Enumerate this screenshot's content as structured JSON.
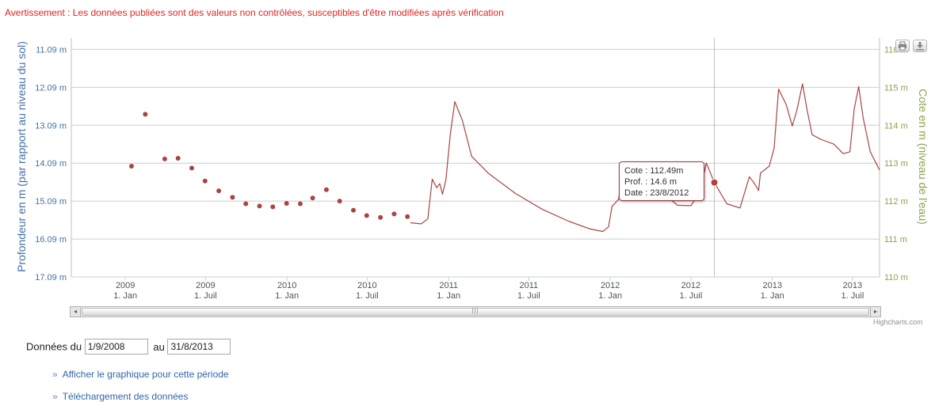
{
  "warning": "Avertissement : Les données publiées sont des valeurs non contrôlées, susceptibles d'être modifiées après vérification",
  "toolbar": {
    "print_icon": "printer-icon",
    "export_icon": "download-icon"
  },
  "tooltip": {
    "cote": "Cote : 112.49m",
    "prof": "Prof. : 14.6 m",
    "date": "Date : 23/8/2012"
  },
  "credits": "Highcharts.com",
  "form": {
    "label_from": "Données du",
    "from_value": "1/9/2008",
    "label_to": "au",
    "to_value": "31/8/2013"
  },
  "links": {
    "show_chart": "Afficher le graphique pour cette période",
    "download": "Téléchargement des données"
  },
  "colors": {
    "series": "#a94442",
    "left_axis": "#4572a7",
    "right_axis": "#89a54e",
    "warning": "#e4231f"
  },
  "chart_data": {
    "type": "line",
    "xlabel": "",
    "left_axis": {
      "label": "Profondeur en m (par rapport au niveau du sol)",
      "ticks": [
        "11.09 m",
        "12.09 m",
        "13.09 m",
        "14.09 m",
        "15.09 m",
        "16.09 m",
        "17.09 m"
      ],
      "range": [
        10.79,
        17.09
      ],
      "reversed": true
    },
    "right_axis": {
      "label": "Cote en m (niveau de l'eau)",
      "ticks": [
        "110 m",
        "111 m",
        "112 m",
        "113 m",
        "114 m",
        "115 m",
        "116 m"
      ],
      "range": [
        110,
        116.3
      ]
    },
    "x_ticks": [
      {
        "year": "2009",
        "sub": "1. Jan",
        "date": "2009-01-01"
      },
      {
        "year": "2009",
        "sub": "1. Juil",
        "date": "2009-07-01"
      },
      {
        "year": "2010",
        "sub": "1. Jan",
        "date": "2010-01-01"
      },
      {
        "year": "2010",
        "sub": "1. Juil",
        "date": "2010-07-01"
      },
      {
        "year": "2011",
        "sub": "1. Jan",
        "date": "2011-01-01"
      },
      {
        "year": "2011",
        "sub": "1. Juil",
        "date": "2011-07-01"
      },
      {
        "year": "2012",
        "sub": "1. Jan",
        "date": "2012-01-01"
      },
      {
        "year": "2012",
        "sub": "1. Juil",
        "date": "2012-07-01"
      },
      {
        "year": "2013",
        "sub": "1. Jan",
        "date": "2013-01-01"
      },
      {
        "year": "2013",
        "sub": "1. Juil",
        "date": "2013-07-01"
      }
    ],
    "x_range": [
      "2008-09-01",
      "2013-08-31"
    ],
    "grid": true,
    "highlight": {
      "date": "2012-08-23",
      "cote": 112.49
    },
    "series": [
      {
        "name": "",
        "type": "scatter",
        "points": [
          [
            "2009-01-15",
            112.92
          ],
          [
            "2009-02-15",
            114.29
          ],
          [
            "2009-03-31",
            113.11
          ],
          [
            "2009-04-30",
            113.13
          ],
          [
            "2009-05-31",
            112.87
          ],
          [
            "2009-06-30",
            112.53
          ],
          [
            "2009-07-31",
            112.27
          ],
          [
            "2009-08-31",
            112.1
          ],
          [
            "2009-09-30",
            111.93
          ],
          [
            "2009-10-31",
            111.87
          ],
          [
            "2009-11-30",
            111.85
          ],
          [
            "2009-12-31",
            111.94
          ],
          [
            "2010-01-31",
            111.93
          ],
          [
            "2010-02-28",
            112.08
          ],
          [
            "2010-03-31",
            112.3
          ],
          [
            "2010-04-30",
            112.0
          ],
          [
            "2010-05-31",
            111.76
          ],
          [
            "2010-06-30",
            111.62
          ],
          [
            "2010-07-31",
            111.57
          ],
          [
            "2010-08-31",
            111.66
          ],
          [
            "2010-09-30",
            111.59
          ]
        ]
      },
      {
        "name": "",
        "type": "line",
        "points": [
          [
            "2010-10-07",
            111.43
          ],
          [
            "2010-10-31",
            111.4
          ],
          [
            "2010-11-15",
            111.53
          ],
          [
            "2010-11-25",
            112.58
          ],
          [
            "2010-12-05",
            112.35
          ],
          [
            "2010-12-12",
            112.46
          ],
          [
            "2010-12-18",
            112.18
          ],
          [
            "2010-12-26",
            112.57
          ],
          [
            "2011-01-05",
            113.78
          ],
          [
            "2011-01-15",
            114.62
          ],
          [
            "2011-02-01",
            114.13
          ],
          [
            "2011-02-22",
            113.18
          ],
          [
            "2011-04-01",
            112.73
          ],
          [
            "2011-06-01",
            112.2
          ],
          [
            "2011-08-01",
            111.78
          ],
          [
            "2011-10-01",
            111.46
          ],
          [
            "2011-11-15",
            111.27
          ],
          [
            "2011-12-15",
            111.2
          ],
          [
            "2011-12-28",
            111.32
          ],
          [
            "2012-01-05",
            111.86
          ],
          [
            "2012-01-20",
            112.05
          ],
          [
            "2012-01-30",
            112.98
          ],
          [
            "2012-02-15",
            112.39
          ],
          [
            "2012-03-15",
            112.33
          ],
          [
            "2012-05-01",
            112.18
          ],
          [
            "2012-06-01",
            111.89
          ],
          [
            "2012-07-01",
            111.88
          ],
          [
            "2012-07-20",
            112.2
          ],
          [
            "2012-08-05",
            113.0
          ],
          [
            "2012-08-23",
            112.49
          ],
          [
            "2012-09-20",
            111.93
          ],
          [
            "2012-10-20",
            111.82
          ],
          [
            "2012-11-10",
            112.64
          ],
          [
            "2012-11-20",
            112.49
          ],
          [
            "2012-12-01",
            112.28
          ],
          [
            "2012-12-05",
            112.74
          ],
          [
            "2012-12-25",
            112.92
          ],
          [
            "2013-01-05",
            113.4
          ],
          [
            "2013-01-15",
            114.95
          ],
          [
            "2013-02-01",
            114.55
          ],
          [
            "2013-02-15",
            113.98
          ],
          [
            "2013-02-25",
            114.38
          ],
          [
            "2013-03-10",
            115.09
          ],
          [
            "2013-03-20",
            114.43
          ],
          [
            "2013-04-01",
            113.75
          ],
          [
            "2013-04-20",
            113.63
          ],
          [
            "2013-05-20",
            113.5
          ],
          [
            "2013-06-10",
            113.25
          ],
          [
            "2013-06-25",
            113.3
          ],
          [
            "2013-07-05",
            114.44
          ],
          [
            "2013-07-15",
            115.02
          ],
          [
            "2013-07-25",
            114.2
          ],
          [
            "2013-08-10",
            113.3
          ],
          [
            "2013-08-31",
            112.82
          ]
        ]
      }
    ]
  }
}
